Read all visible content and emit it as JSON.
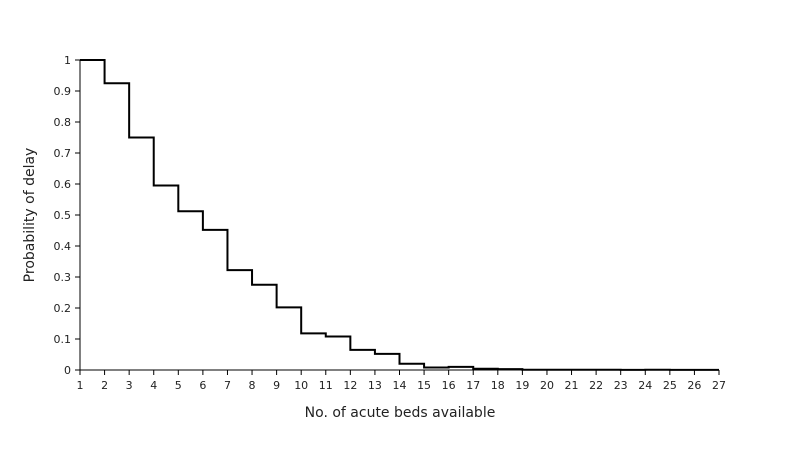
{
  "chart_data": {
    "type": "line",
    "step": "post",
    "title": "",
    "xlabel": "No. of acute beds available",
    "ylabel": "Probability of delay",
    "xlim": [
      1,
      27
    ],
    "ylim": [
      0,
      1
    ],
    "grid": false,
    "xticks": [
      "1",
      "2",
      "3",
      "4",
      "5",
      "6",
      "7",
      "8",
      "9",
      "10",
      "11",
      "12",
      "13",
      "14",
      "15",
      "16",
      "17",
      "18",
      "19",
      "20",
      "21",
      "22",
      "23",
      "24",
      "25",
      "26",
      "27"
    ],
    "yticks": [
      "0",
      "0.1",
      "0.2",
      "0.3",
      "0.4",
      "0.5",
      "0.6",
      "0.7",
      "0.8",
      "0.9",
      "1"
    ],
    "ytick_values": [
      0,
      0.1,
      0.2,
      0.3,
      0.4,
      0.5,
      0.6,
      0.7,
      0.8,
      0.9,
      1
    ],
    "series": [
      {
        "x": [
          1,
          2,
          3,
          4,
          5,
          6,
          7,
          8,
          9,
          10,
          11,
          12,
          13,
          14,
          15,
          16,
          17,
          18,
          19,
          20,
          21,
          22,
          23,
          24,
          25,
          26,
          27
        ],
        "values": [
          1.0,
          0.925,
          0.75,
          0.595,
          0.512,
          0.452,
          0.322,
          0.275,
          0.202,
          0.118,
          0.108,
          0.065,
          0.052,
          0.02,
          0.008,
          0.01,
          0.004,
          0.003,
          0.001,
          0.001,
          0.001,
          0.001,
          0.0005,
          0.001,
          0.0005,
          0.0005,
          0.0005
        ],
        "color": "#000000"
      }
    ]
  }
}
